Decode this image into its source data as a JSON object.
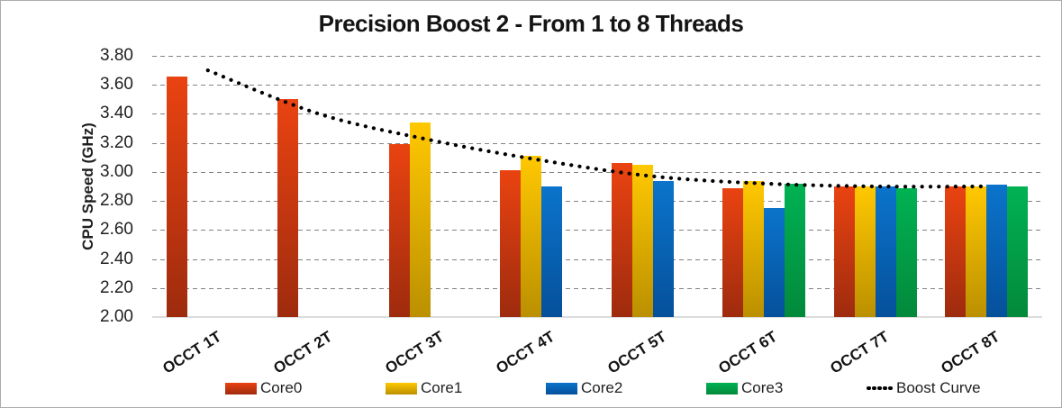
{
  "window": {
    "background": "#FFFFFF",
    "border_color": "#ABABAB"
  },
  "chart_data": {
    "type": "bar",
    "title": "Precision Boost 2 - From 1 to 8 Threads",
    "xlabel": "",
    "ylabel": "CPU Speed (GHz)",
    "ylim": [
      2.0,
      3.8
    ],
    "ytick_step": 0.2,
    "ytick_decimals": 2,
    "grid": "horizontal-dashed",
    "grid_color": "#828282",
    "axis_line_color": "#DCDCDC",
    "legend_position": "bottom",
    "categories": [
      "OCCT 1T",
      "OCCT 2T",
      "OCCT 3T",
      "OCCT 4T",
      "OCCT 5T",
      "OCCT 6T",
      "OCCT 7T",
      "OCCT 8T"
    ],
    "series": [
      {
        "name": "Core0",
        "color_top": "#EA4311",
        "color_bottom": "#9E2B0E",
        "values": [
          3.66,
          3.5,
          3.19,
          3.01,
          3.06,
          2.89,
          2.9,
          2.9
        ]
      },
      {
        "name": "Core1",
        "color_top": "#FFC801",
        "color_bottom": "#BB9000",
        "values": [
          null,
          null,
          3.34,
          3.11,
          3.05,
          2.94,
          2.9,
          2.9
        ]
      },
      {
        "name": "Core2",
        "color_top": "#0B74CB",
        "color_bottom": "#05509B",
        "values": [
          null,
          null,
          null,
          2.9,
          2.94,
          2.75,
          2.9,
          2.91
        ]
      },
      {
        "name": "Core3",
        "color_top": "#01B253",
        "color_bottom": "#02893B",
        "values": [
          null,
          null,
          null,
          null,
          null,
          2.92,
          2.89,
          2.9
        ]
      }
    ],
    "line_series": {
      "name": "Boost Curve",
      "color": "#000000",
      "style": "dotted",
      "values": [
        3.7,
        3.4,
        3.22,
        3.08,
        2.97,
        2.92,
        2.9,
        2.9
      ]
    }
  }
}
